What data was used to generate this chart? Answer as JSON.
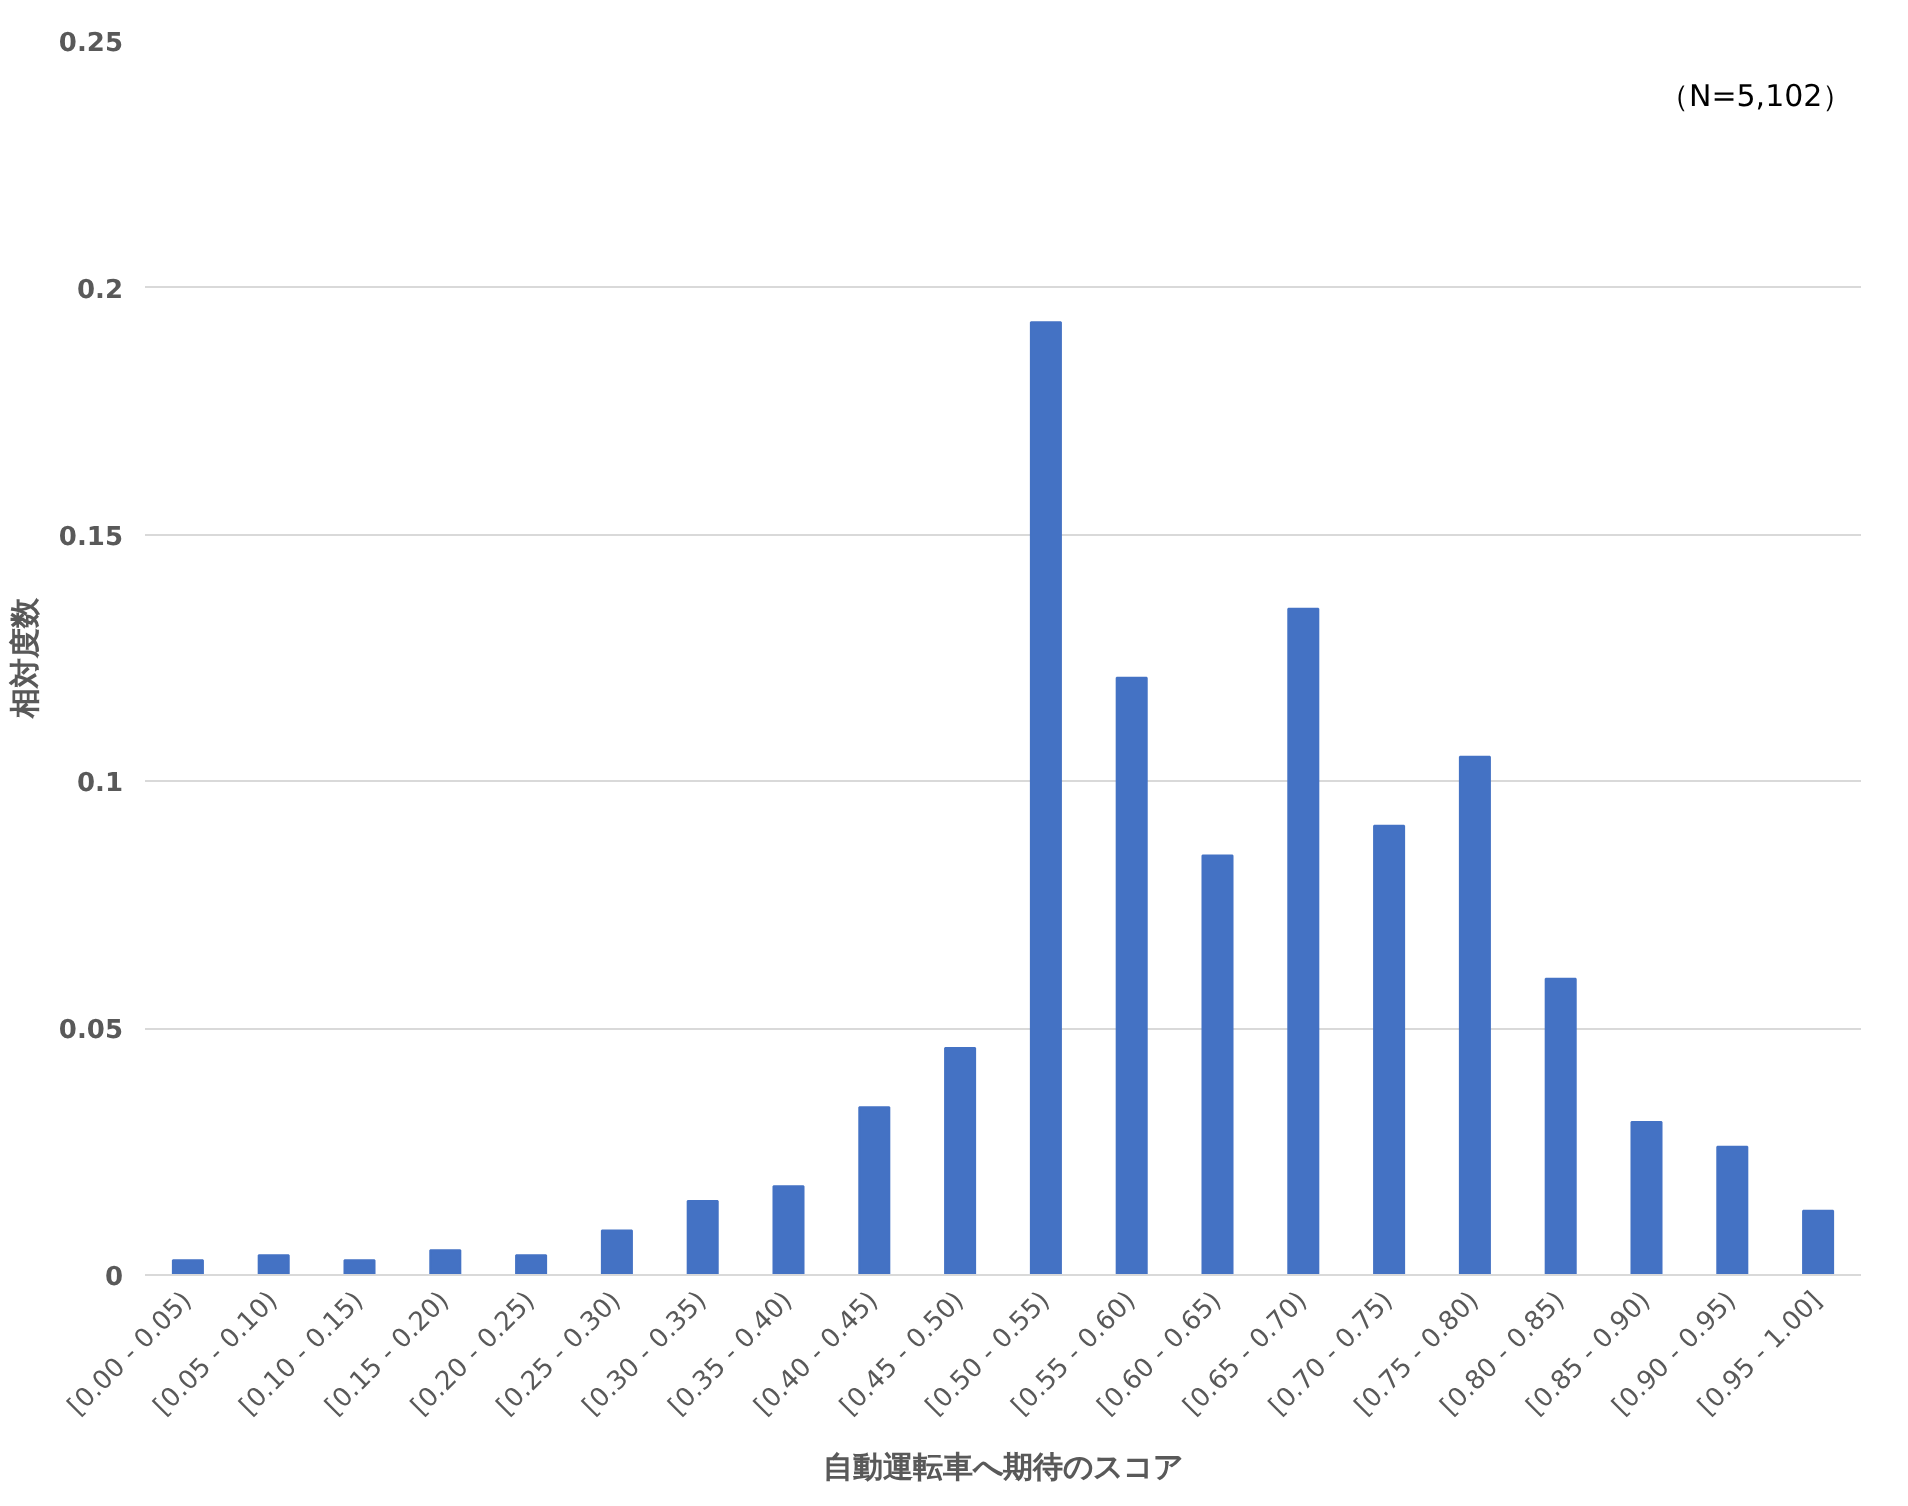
{
  "chart_data": {
    "type": "bar",
    "xlabel": "自動運転車へ期待のスコア",
    "ylabel": "相対度数",
    "categories": [
      "[0.00 - 0.05)",
      "[0.05 - 0.10)",
      "[0.10 - 0.15)",
      "[0.15 - 0.20)",
      "[0.20 - 0.25)",
      "[0.25 - 0.30)",
      "[0.30 - 0.35)",
      "[0.35 - 0.40)",
      "[0.40 - 0.45)",
      "[0.45 - 0.50)",
      "[0.50 - 0.55)",
      "[0.55 - 0.60)",
      "[0.60 - 0.65)",
      "[0.65 - 0.70)",
      "[0.70 - 0.75)",
      "[0.75 - 0.80)",
      "[0.80 - 0.85)",
      "[0.85 - 0.90)",
      "[0.90 - 0.95)",
      "[0.95 - 1.00]"
    ],
    "values": [
      0.003,
      0.004,
      0.003,
      0.005,
      0.004,
      0.009,
      0.015,
      0.018,
      0.034,
      0.046,
      0.193,
      0.121,
      0.085,
      0.135,
      0.091,
      0.105,
      0.06,
      0.031,
      0.026,
      0.013
    ],
    "color": "#4472c4",
    "ylim": [
      0,
      0.25
    ],
    "yticks": [
      0,
      0.05,
      {
        "value": 0.1,
        "label": "0.1"
      },
      0.15,
      {
        "value": 0.2,
        "label": "0.2"
      },
      0.25
    ],
    "grid": "y",
    "annotations": [
      "（N=5,102）"
    ]
  }
}
